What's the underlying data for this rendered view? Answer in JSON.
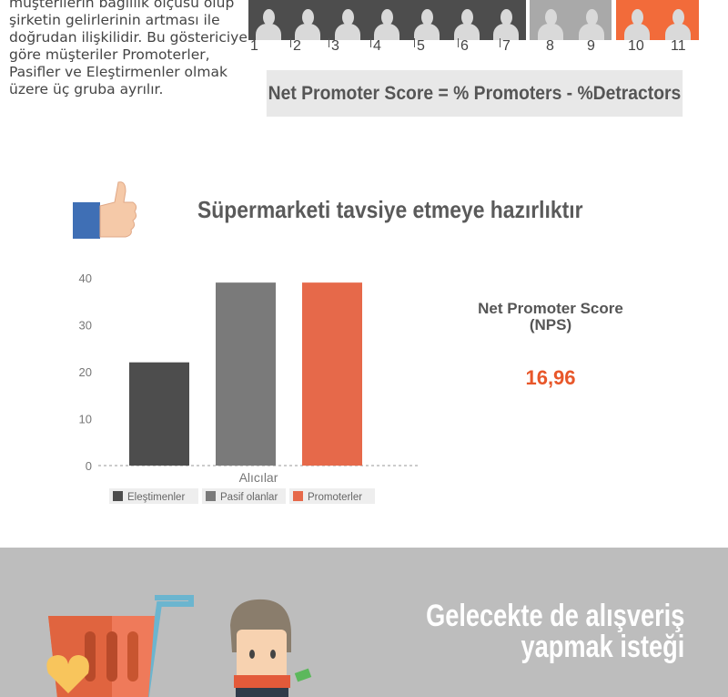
{
  "intro": {
    "text": "müşterilerin bağlılık ölçüsü olup şirketin gelirlerinin artması ile doğrudan ilişkilidir. Bu göstericiye göre müşteriler Promoterler, Pasifler ve Eleştirmenler olmak üzere üç gruba ayrılır."
  },
  "scale": {
    "numbers": [
      "1",
      "2",
      "3",
      "4",
      "5",
      "6",
      "7",
      "8",
      "9",
      "10",
      "11"
    ],
    "colors": {
      "detractor": "#4d4d4d",
      "passive": "#a9a9a9",
      "promoter": "#f26b3a"
    }
  },
  "formula": "Net Promoter Score  =  % Promoters - %Detractors",
  "nps": {
    "label_line1": "Net Promoter Score",
    "label_line2": "(NPS)",
    "value": "16,96"
  },
  "chart_data": {
    "type": "bar",
    "title": "Süpermarketi tavsiye etmeye hazırlıktır",
    "categories": [
      "Alıcılar"
    ],
    "xlabel": "Alıcılar",
    "ylabel": "",
    "ylim": [
      0,
      40
    ],
    "yticks": [
      "0",
      "10",
      "20",
      "30",
      "40"
    ],
    "series": [
      {
        "name": "Eleştimenler",
        "values": [
          22
        ],
        "color": "#4d4d4d"
      },
      {
        "name": "Pasif olanlar",
        "values": [
          39
        ],
        "color": "#7a7a7a"
      },
      {
        "name": "Promoterler",
        "values": [
          39
        ],
        "color": "#e6694a"
      }
    ],
    "legend": "bottom",
    "grid": false
  },
  "bottom": {
    "title_line1": "Gelecekte de alışveriş",
    "title_line2": "yapmak isteği"
  }
}
